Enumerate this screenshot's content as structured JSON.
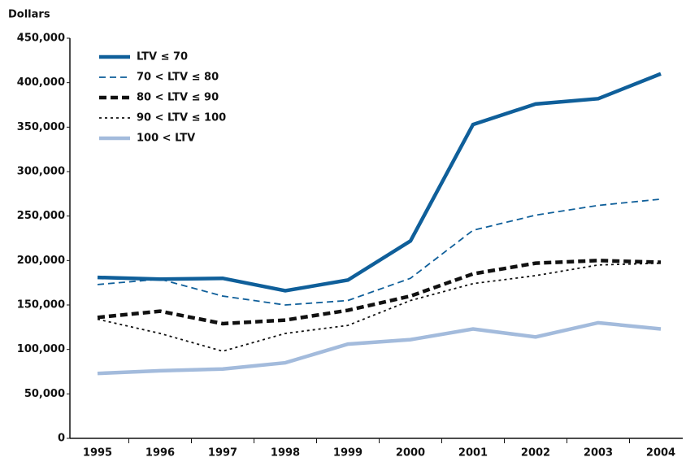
{
  "chart_data": {
    "type": "line",
    "y_label": "Dollars",
    "categories": [
      "1995",
      "1996",
      "1997",
      "1998",
      "1999",
      "2000",
      "2001",
      "2002",
      "2003",
      "2004"
    ],
    "series": [
      {
        "name": "LTV ≤ 70",
        "color": "#0f5f9a",
        "width": 4.5,
        "dash": "none",
        "values": [
          181000,
          179000,
          180000,
          166000,
          178000,
          222000,
          353000,
          376000,
          382000,
          410000
        ]
      },
      {
        "name": "70 < LTV ≤ 80",
        "color": "#0f5f9a",
        "width": 1.8,
        "dash": "8 5",
        "values": [
          173000,
          179000,
          160000,
          150000,
          155000,
          180000,
          234000,
          251000,
          262000,
          269000
        ]
      },
      {
        "name": "80 < LTV ≤ 90",
        "color": "#111111",
        "width": 4.5,
        "dash": "9 5",
        "values": [
          136000,
          143000,
          129000,
          133000,
          144000,
          160000,
          185000,
          197000,
          200000,
          198000
        ]
      },
      {
        "name": "90 < LTV ≤ 100",
        "color": "#111111",
        "width": 1.8,
        "dash": "3 4",
        "values": [
          134000,
          118000,
          98000,
          118000,
          127000,
          155000,
          174000,
          183000,
          195000,
          197000
        ]
      },
      {
        "name": "100 < LTV",
        "color": "#a3bbdc",
        "width": 4.5,
        "dash": "none",
        "values": [
          73000,
          76000,
          78000,
          85000,
          106000,
          111000,
          123000,
          114000,
          130000,
          123000
        ]
      }
    ],
    "ylim": [
      0,
      450000
    ],
    "yticks": [
      0,
      {
        "value": 50000,
        "label": "50,000"
      },
      {
        "value": 100000,
        "label": "100,000"
      },
      {
        "value": 150000,
        "label": "150,000"
      },
      {
        "value": 200000,
        "label": "200,000"
      },
      {
        "value": 250000,
        "label": "250,000"
      },
      {
        "value": 300000,
        "label": "300,000"
      },
      {
        "value": 350000,
        "label": "350,000"
      },
      {
        "value": 400000,
        "label": "400,000"
      },
      {
        "value": 450000,
        "label": "450,000"
      }
    ],
    "legend": "upper-left"
  }
}
